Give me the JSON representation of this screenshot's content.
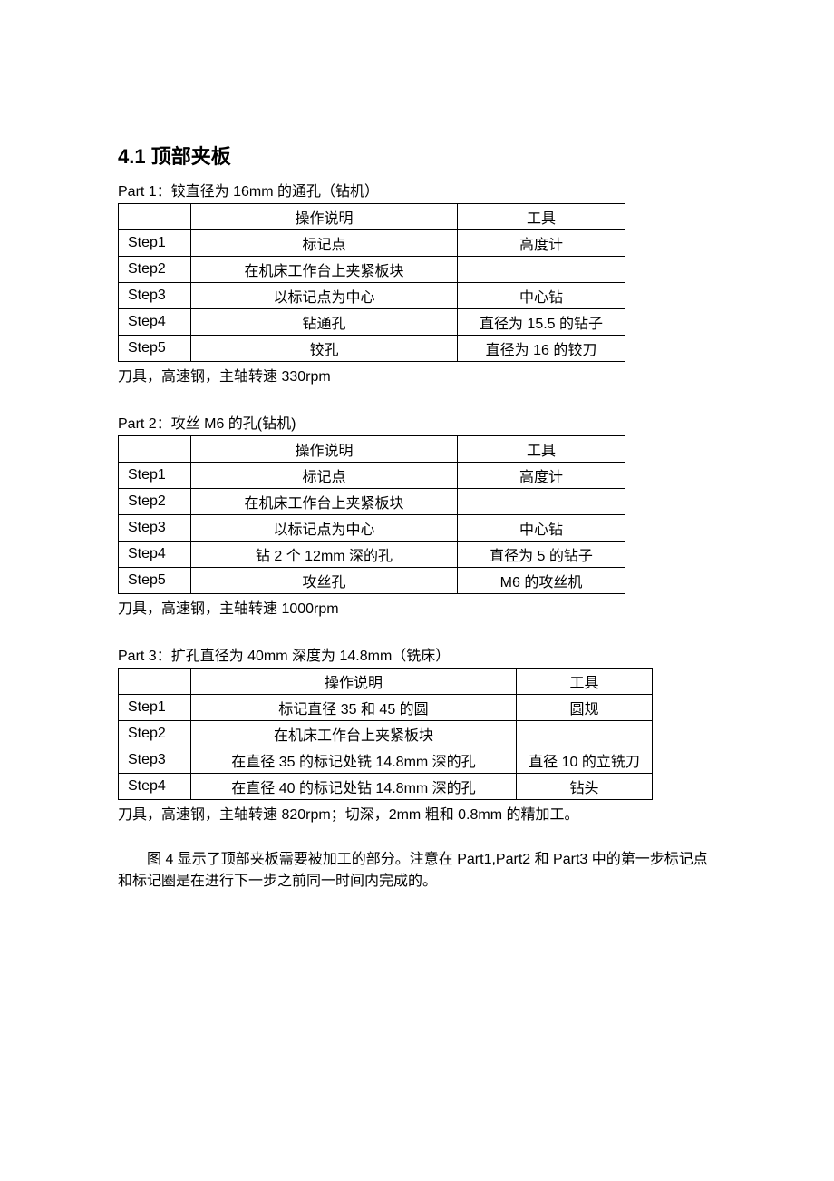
{
  "section_title": "4.1 顶部夹板",
  "parts": [
    {
      "title": "Part 1：铰直径为 16mm 的通孔（钻机）",
      "header_desc": "操作说明",
      "header_tool": "工具",
      "rows": [
        {
          "step": "Step1",
          "desc": "标记点",
          "tool": "高度计"
        },
        {
          "step": "Step2",
          "desc": "在机床工作台上夹紧板块",
          "tool": ""
        },
        {
          "step": "Step3",
          "desc": "以标记点为中心",
          "tool": "中心钻"
        },
        {
          "step": "Step4",
          "desc": "钻通孔",
          "tool": "直径为 15.5 的钻子"
        },
        {
          "step": "Step5",
          "desc": "铰孔",
          "tool": "直径为 16 的铰刀"
        }
      ],
      "caption": "刀具，高速钢，主轴转速 330rpm"
    },
    {
      "title": "Part 2：攻丝 M6 的孔(钻机)",
      "header_desc": "操作说明",
      "header_tool": "工具",
      "rows": [
        {
          "step": "Step1",
          "desc": "标记点",
          "tool": "高度计"
        },
        {
          "step": "Step2",
          "desc": "在机床工作台上夹紧板块",
          "tool": ""
        },
        {
          "step": "Step3",
          "desc": "以标记点为中心",
          "tool": "中心钻"
        },
        {
          "step": "Step4",
          "desc": "钻 2 个 12mm 深的孔",
          "tool": "直径为 5 的钻子"
        },
        {
          "step": "Step5",
          "desc": "攻丝孔",
          "tool": "M6 的攻丝机"
        }
      ],
      "caption": "刀具，高速钢，主轴转速 1000rpm"
    },
    {
      "title": "Part 3：扩孔直径为 40mm 深度为 14.8mm（铣床）",
      "header_desc": "操作说明",
      "header_tool": "工具",
      "rows": [
        {
          "step": "Step1",
          "desc": "标记直径 35 和 45 的圆",
          "tool": "圆规"
        },
        {
          "step": "Step2",
          "desc": "在机床工作台上夹紧板块",
          "tool": ""
        },
        {
          "step": "Step3",
          "desc": "在直径 35 的标记处铣 14.8mm 深的孔",
          "tool": "直径 10 的立铣刀"
        },
        {
          "step": "Step4",
          "desc": "在直径 40 的标记处钻 14.8mm 深的孔",
          "tool": "钻头"
        }
      ],
      "caption": "刀具，高速钢，主轴转速 820rpm；切深，2mm 粗和 0.8mm 的精加工。"
    }
  ],
  "body_paragraph": "图 4 显示了顶部夹板需要被加工的部分。注意在 Part1,Part2 和 Part3 中的第一步标记点和标记圈是在进行下一步之前同一时间内完成的。"
}
